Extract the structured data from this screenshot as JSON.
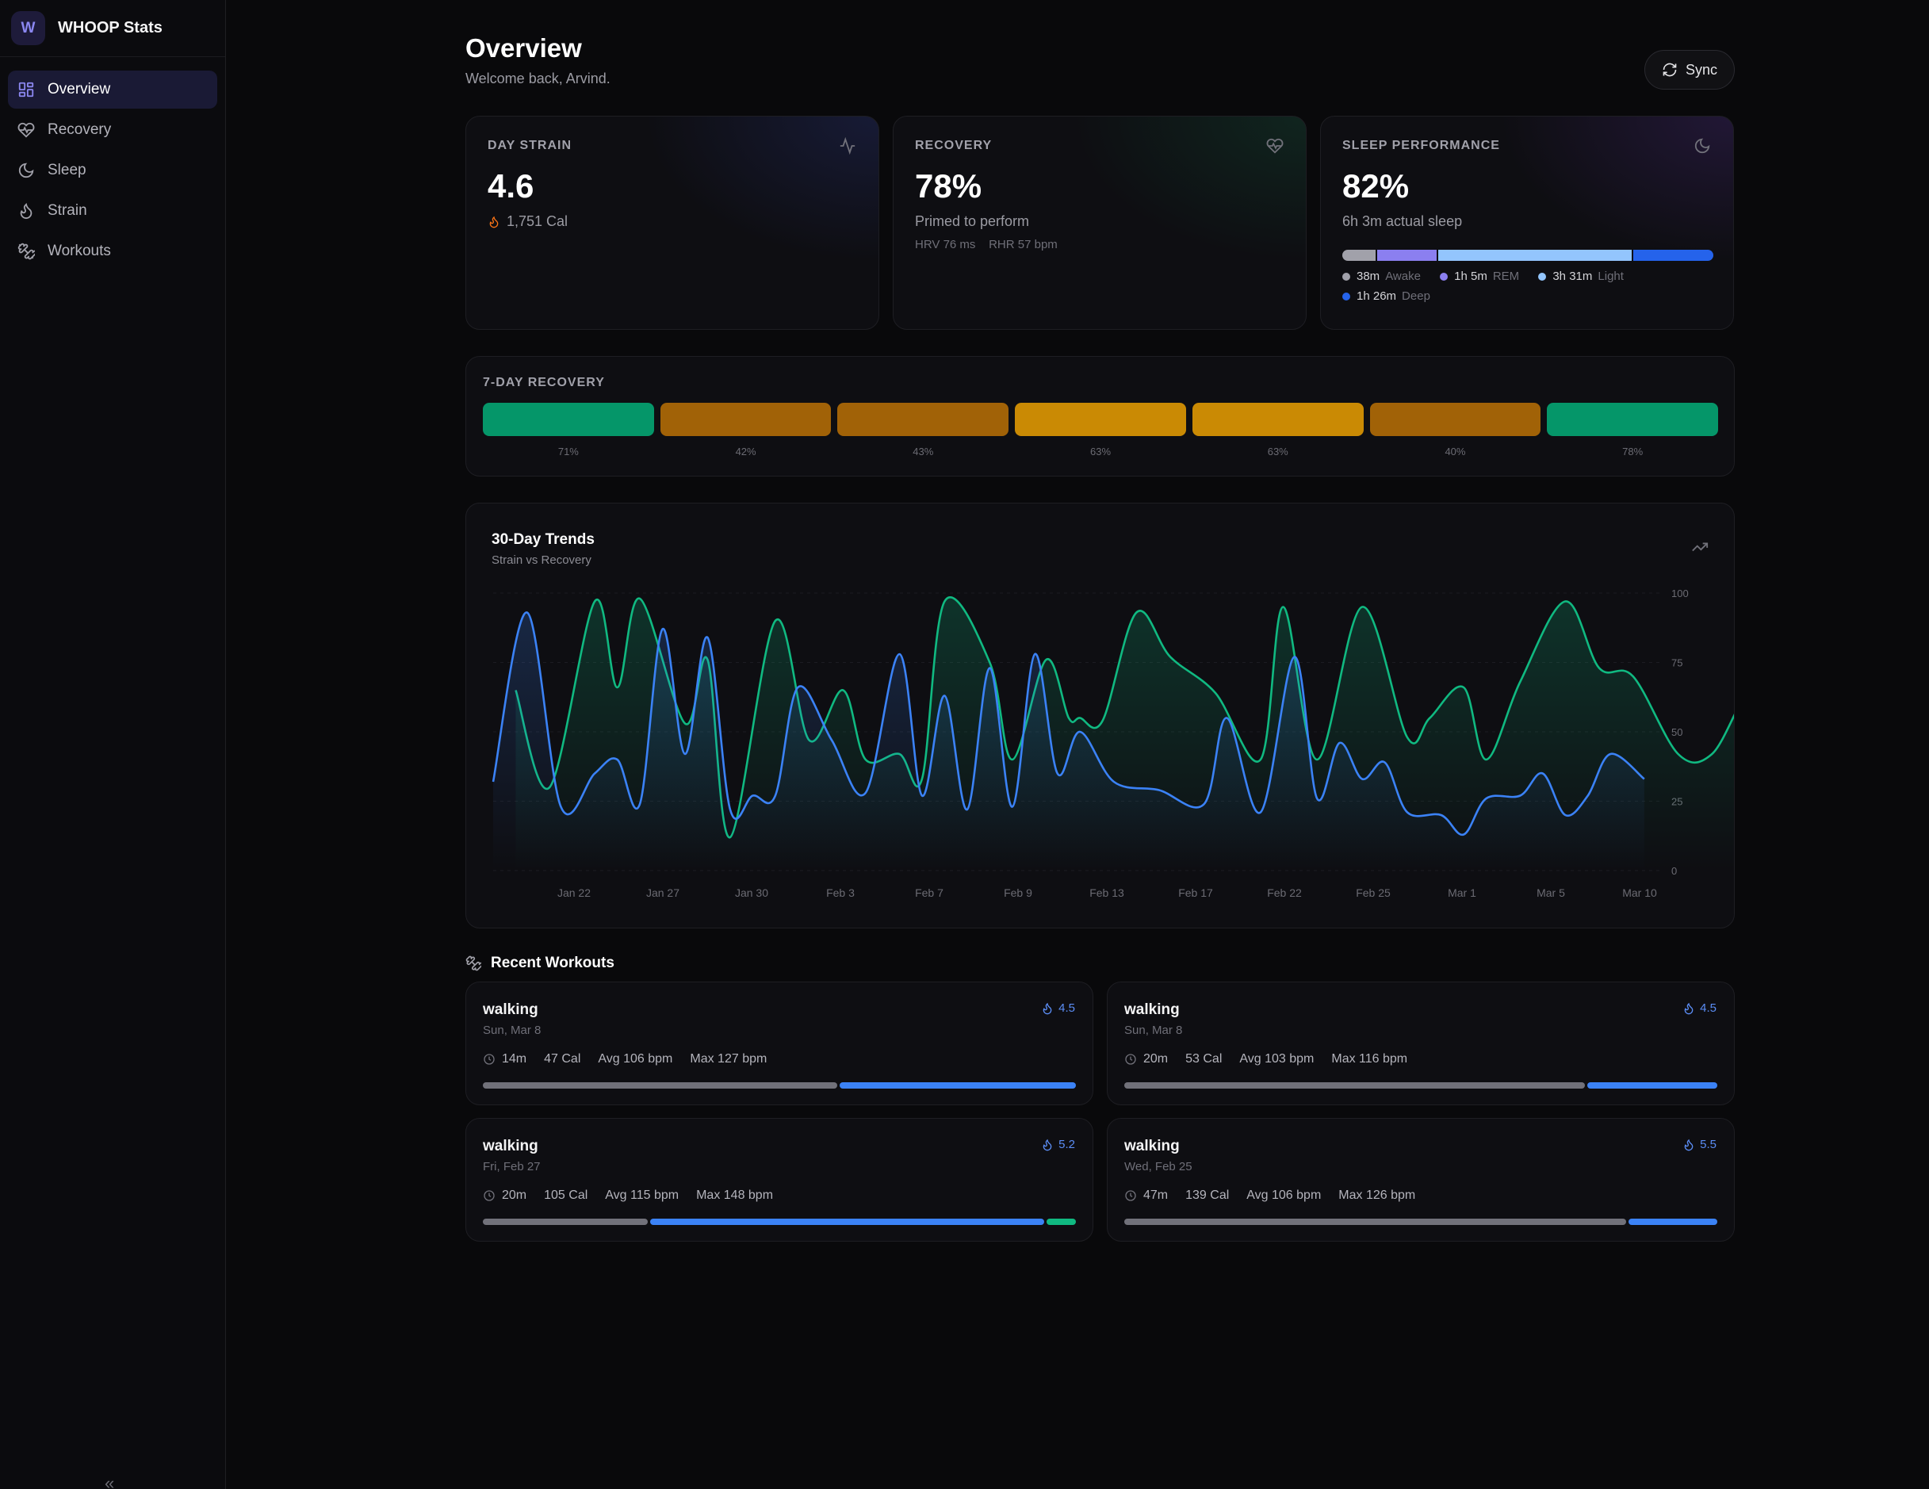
{
  "brand": {
    "logo_letter": "W",
    "name": "WHOOP Stats"
  },
  "nav": [
    {
      "label": "Overview",
      "icon": "grid-icon",
      "active": true
    },
    {
      "label": "Recovery",
      "icon": "heart-pulse-icon",
      "active": false
    },
    {
      "label": "Sleep",
      "icon": "moon-icon",
      "active": false
    },
    {
      "label": "Strain",
      "icon": "flame-icon",
      "active": false
    },
    {
      "label": "Workouts",
      "icon": "dumbbell-icon",
      "active": false
    }
  ],
  "collapse_glyph": "«",
  "header": {
    "title": "Overview",
    "subtitle": "Welcome back, Arvind.",
    "sync_label": "Sync"
  },
  "cards": {
    "strain": {
      "label": "DAY STRAIN",
      "value": "4.6",
      "calories": "1,751 Cal"
    },
    "recovery": {
      "label": "RECOVERY",
      "value": "78%",
      "status": "Primed to perform",
      "hrv": "HRV 76 ms",
      "rhr": "RHR 57 bpm"
    },
    "sleep": {
      "label": "SLEEP PERFORMANCE",
      "value": "82%",
      "actual": "6h 3m actual sleep",
      "stages": [
        {
          "value": "38m",
          "name": "Awake",
          "minutes": 38,
          "color": "#a1a1aa"
        },
        {
          "value": "1h 5m",
          "name": "REM",
          "minutes": 65,
          "color": "#8b7ff0"
        },
        {
          "value": "3h 31m",
          "name": "Light",
          "minutes": 211,
          "color": "#93c5fd"
        },
        {
          "value": "1h 26m",
          "name": "Deep",
          "minutes": 86,
          "color": "#2563eb"
        }
      ]
    }
  },
  "week_recovery": {
    "label": "7-DAY RECOVERY",
    "days": [
      {
        "label": "71%",
        "value": 71,
        "color": "#059669"
      },
      {
        "label": "42%",
        "value": 42,
        "color": "#a16207"
      },
      {
        "label": "43%",
        "value": 43,
        "color": "#a16207"
      },
      {
        "label": "63%",
        "value": 63,
        "color": "#ca8a04"
      },
      {
        "label": "63%",
        "value": 63,
        "color": "#ca8a04"
      },
      {
        "label": "40%",
        "value": 40,
        "color": "#a16207"
      },
      {
        "label": "78%",
        "value": 78,
        "color": "#059669"
      }
    ]
  },
  "chart_data": {
    "type": "line",
    "title": "30-Day Trends",
    "subtitle": "Strain vs Recovery",
    "x_ticks": [
      "Jan 22",
      "Jan 27",
      "Jan 30",
      "Feb 3",
      "Feb 7",
      "Feb 9",
      "Feb 13",
      "Feb 17",
      "Feb 22",
      "Feb 25",
      "Mar 1",
      "Mar 5",
      "Mar 10"
    ],
    "y_right_ticks": [
      "0",
      "25",
      "50",
      "75",
      "100"
    ],
    "ylim": [
      0,
      100
    ],
    "grid": true,
    "series": [
      {
        "color": "#10b981",
        "points": [
          [
            0.02,
            65
          ],
          [
            0.05,
            30
          ],
          [
            0.09,
            97
          ],
          [
            0.11,
            66
          ],
          [
            0.13,
            98
          ],
          [
            0.17,
            53
          ],
          [
            0.19,
            76
          ],
          [
            0.21,
            12
          ],
          [
            0.25,
            90
          ],
          [
            0.28,
            47
          ],
          [
            0.31,
            65
          ],
          [
            0.33,
            40
          ],
          [
            0.36,
            42
          ],
          [
            0.38,
            33
          ],
          [
            0.4,
            97
          ],
          [
            0.44,
            75
          ],
          [
            0.46,
            40
          ],
          [
            0.49,
            76
          ],
          [
            0.51,
            55
          ],
          [
            0.52,
            55
          ],
          [
            0.54,
            54
          ],
          [
            0.57,
            93
          ],
          [
            0.6,
            77
          ],
          [
            0.64,
            64
          ],
          [
            0.68,
            40
          ],
          [
            0.7,
            95
          ],
          [
            0.73,
            40
          ],
          [
            0.77,
            95
          ],
          [
            0.81,
            48
          ],
          [
            0.83,
            55
          ],
          [
            0.86,
            66
          ],
          [
            0.88,
            40
          ],
          [
            0.91,
            68
          ],
          [
            0.95,
            97
          ],
          [
            0.98,
            73
          ],
          [
            1.01,
            70
          ],
          [
            1.05,
            42
          ],
          [
            1.08,
            42
          ],
          [
            1.11,
            63
          ],
          [
            1.13,
            63
          ],
          [
            1.16,
            40
          ],
          [
            1.19,
            78
          ]
        ]
      },
      {
        "color": "#3b82f6",
        "points": [
          [
            0.0,
            32
          ],
          [
            0.03,
            93
          ],
          [
            0.06,
            23
          ],
          [
            0.09,
            35
          ],
          [
            0.11,
            40
          ],
          [
            0.13,
            24
          ],
          [
            0.15,
            87
          ],
          [
            0.17,
            42
          ],
          [
            0.19,
            84
          ],
          [
            0.21,
            22
          ],
          [
            0.23,
            27
          ],
          [
            0.25,
            27
          ],
          [
            0.27,
            66
          ],
          [
            0.3,
            47
          ],
          [
            0.33,
            28
          ],
          [
            0.36,
            78
          ],
          [
            0.38,
            27
          ],
          [
            0.4,
            63
          ],
          [
            0.42,
            22
          ],
          [
            0.44,
            73
          ],
          [
            0.46,
            23
          ],
          [
            0.48,
            78
          ],
          [
            0.5,
            35
          ],
          [
            0.52,
            50
          ],
          [
            0.55,
            32
          ],
          [
            0.59,
            29
          ],
          [
            0.63,
            24
          ],
          [
            0.65,
            55
          ],
          [
            0.68,
            21
          ],
          [
            0.71,
            77
          ],
          [
            0.73,
            26
          ],
          [
            0.75,
            46
          ],
          [
            0.77,
            33
          ],
          [
            0.79,
            39
          ],
          [
            0.81,
            21
          ],
          [
            0.84,
            20
          ],
          [
            0.86,
            13
          ],
          [
            0.88,
            26
          ],
          [
            0.91,
            27
          ],
          [
            0.93,
            35
          ],
          [
            0.95,
            20
          ],
          [
            0.97,
            27
          ],
          [
            0.99,
            42
          ],
          [
            1.02,
            33
          ]
        ]
      }
    ]
  },
  "workouts": {
    "title": "Recent Workouts",
    "items": [
      {
        "name": "walking",
        "date": "Sun, Mar 8",
        "strain": "4.5",
        "duration": "14m",
        "calories": "47 Cal",
        "avg": "Avg 106 bpm",
        "max": "Max 127 bpm",
        "zones": [
          {
            "w": 60,
            "c": "#71717a"
          },
          {
            "w": 40,
            "c": "#3b82f6"
          }
        ]
      },
      {
        "name": "walking",
        "date": "Sun, Mar 8",
        "strain": "4.5",
        "duration": "20m",
        "calories": "53 Cal",
        "avg": "Avg 103 bpm",
        "max": "Max 116 bpm",
        "zones": [
          {
            "w": 78,
            "c": "#71717a"
          },
          {
            "w": 22,
            "c": "#3b82f6"
          }
        ]
      },
      {
        "name": "walking",
        "date": "Fri, Feb 27",
        "strain": "5.2",
        "duration": "20m",
        "calories": "105 Cal",
        "avg": "Avg 115 bpm",
        "max": "Max 148 bpm",
        "zones": [
          {
            "w": 28,
            "c": "#71717a"
          },
          {
            "w": 67,
            "c": "#3b82f6"
          },
          {
            "w": 5,
            "c": "#10b981"
          }
        ]
      },
      {
        "name": "walking",
        "date": "Wed, Feb 25",
        "strain": "5.5",
        "duration": "47m",
        "calories": "139 Cal",
        "avg": "Avg 106 bpm",
        "max": "Max 126 bpm",
        "zones": [
          {
            "w": 85,
            "c": "#71717a"
          },
          {
            "w": 15,
            "c": "#3b82f6"
          }
        ]
      }
    ]
  }
}
